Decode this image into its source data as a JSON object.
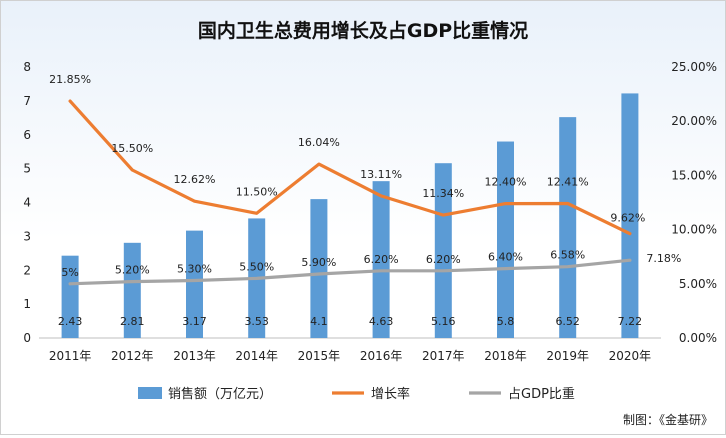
{
  "chart_data": {
    "type": "bar+line",
    "title": "国内卫生总费用增长及占GDP比重情况",
    "categories": [
      "2011年",
      "2012年",
      "2013年",
      "2014年",
      "2015年",
      "2016年",
      "2017年",
      "2018年",
      "2019年",
      "2020年"
    ],
    "left_axis": {
      "min": 0,
      "max": 8,
      "ticks": [
        "0",
        "1",
        "2",
        "3",
        "4",
        "5",
        "6",
        "7",
        "8"
      ]
    },
    "right_axis": {
      "min": 0,
      "max": 25,
      "ticks": [
        "0.00%",
        "5.00%",
        "10.00%",
        "15.00%",
        "20.00%",
        "25.00%"
      ]
    },
    "series": [
      {
        "name": "销售额（万亿元）",
        "type": "bar",
        "axis": "left",
        "color": "#5b9bd5",
        "values": [
          2.43,
          2.81,
          3.17,
          3.53,
          4.1,
          4.63,
          5.16,
          5.8,
          6.52,
          7.22
        ],
        "labels": [
          "2.43",
          "2.81",
          "3.17",
          "3.53",
          "4.1",
          "4.63",
          "5.16",
          "5.8",
          "6.52",
          "7.22"
        ]
      },
      {
        "name": "增长率",
        "type": "line",
        "axis": "right",
        "color": "#ed7d31",
        "values": [
          21.85,
          15.5,
          12.62,
          11.5,
          16.04,
          13.11,
          11.34,
          12.4,
          12.41,
          9.62
        ],
        "labels": [
          "21.85%",
          "15.50%",
          "12.62%",
          "11.50%",
          "16.04%",
          "13.11%",
          "11.34%",
          "12.40%",
          "12.41%",
          "9.62%"
        ]
      },
      {
        "name": "占GDP比重",
        "type": "line",
        "axis": "right",
        "color": "#a5a5a5",
        "values": [
          5,
          5.2,
          5.3,
          5.5,
          5.9,
          6.2,
          6.2,
          6.4,
          6.58,
          7.18
        ],
        "labels": [
          "5%",
          "5.20%",
          "5.30%",
          "5.50%",
          "5.90%",
          "6.20%",
          "6.20%",
          "6.40%",
          "6.58%",
          "7.18%"
        ]
      }
    ],
    "legend_position": "bottom",
    "grid": false
  },
  "credit": "制图：《金基研》"
}
